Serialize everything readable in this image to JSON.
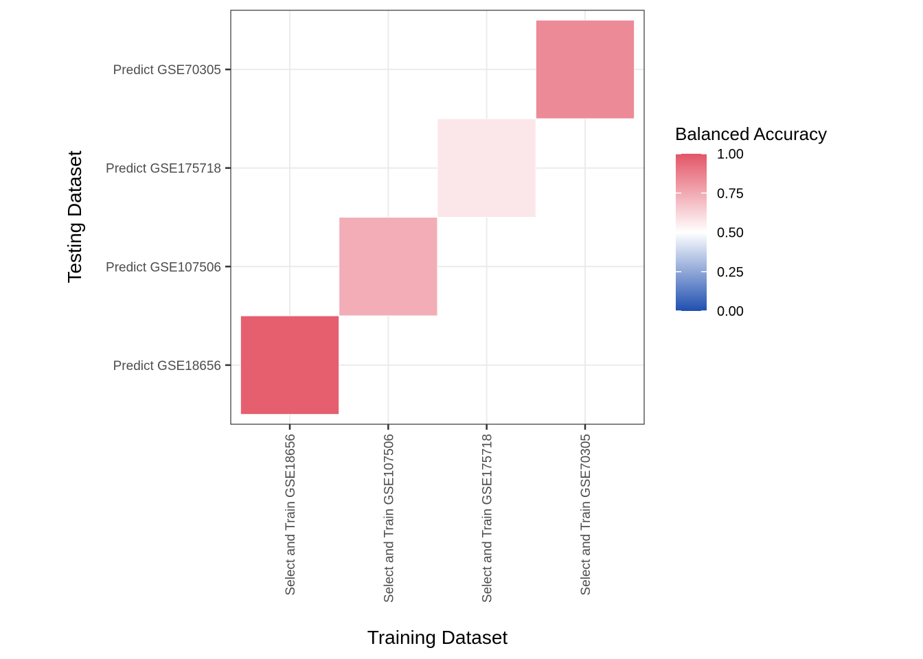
{
  "chart_data": {
    "type": "heatmap",
    "xlabel": "Training Dataset",
    "ylabel": "Testing Dataset",
    "x_categories": [
      "Select and Train GSE18656",
      "Select and Train GSE107506",
      "Select and Train GSE175718",
      "Select and Train GSE70305"
    ],
    "y_categories": [
      "Predict GSE18656",
      "Predict GSE107506",
      "Predict GSE175718",
      "Predict GSE70305"
    ],
    "cells": [
      {
        "x": "Select and Train GSE18656",
        "y": "Predict GSE18656",
        "value": 0.97
      },
      {
        "x": "Select and Train GSE107506",
        "y": "Predict GSE107506",
        "value": 0.74
      },
      {
        "x": "Select and Train GSE175718",
        "y": "Predict GSE175718",
        "value": 0.57
      },
      {
        "x": "Select and Train GSE70305",
        "y": "Predict GSE70305",
        "value": 0.84
      }
    ],
    "legend": {
      "title": "Balanced Accuracy",
      "position": "right",
      "ticks": [
        "1.00",
        "0.75",
        "0.50",
        "0.25",
        "0.00"
      ],
      "limits": [
        0,
        1
      ],
      "colors": {
        "low": "#1f4fb0",
        "mid": "#ffffff",
        "high": "#e35566"
      }
    },
    "grid": true
  }
}
